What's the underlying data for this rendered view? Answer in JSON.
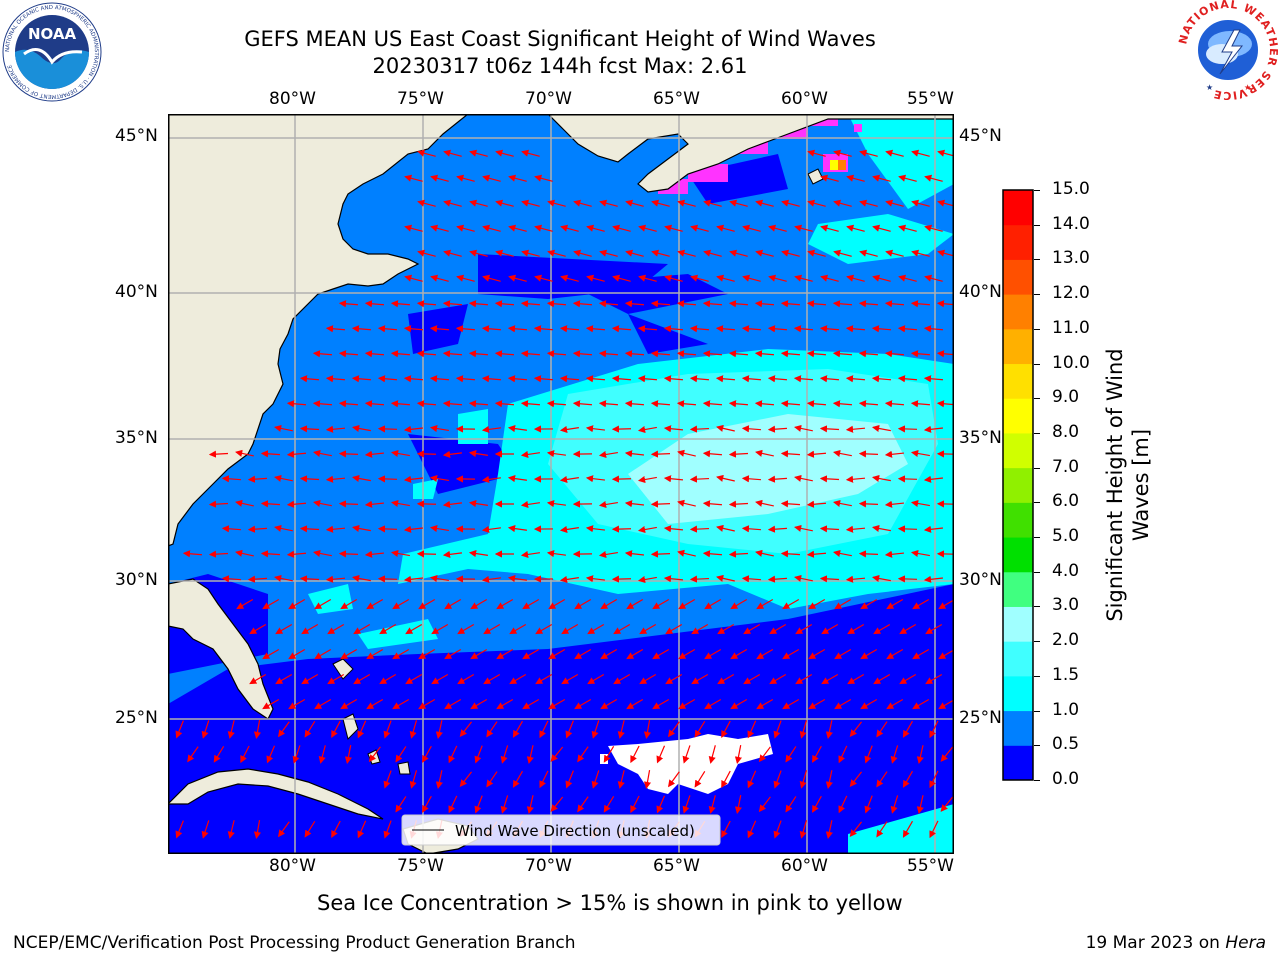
{
  "header": {
    "title_line1": "GEFS MEAN US East Coast Significant Height of Wind Waves",
    "title_line2": "20230317 t06z 144h fcst   Max: 2.61"
  },
  "logos": {
    "noaa_text": "NOAA",
    "noaa_ring_text": "NATIONAL OCEANIC AND ATMOSPHERIC ADMINISTRATION · U.S. DEPARTMENT OF COMMERCE",
    "nws_ring_text": "NATIONAL WEATHER SERVICE"
  },
  "map": {
    "lon_labels": [
      "80°W",
      "75°W",
      "70°W",
      "65°W",
      "60°W",
      "55°W"
    ],
    "lat_labels": [
      "45°N",
      "40°N",
      "35°N",
      "30°N",
      "25°N"
    ],
    "legend_label": "Wind Wave Direction (unscaled)",
    "colors": {
      "land": "#eeecdc",
      "ice": "#ff33ff",
      "arrow": "#ff0000",
      "grid": "#b0b0b0"
    }
  },
  "colorbar": {
    "label": "Significant Height of Wind Waves [m]",
    "ticks": [
      "0.0",
      "0.5",
      "1.0",
      "1.5",
      "2.0",
      "3.0",
      "4.0",
      "5.0",
      "6.0",
      "7.0",
      "8.0",
      "9.0",
      "10.0",
      "11.0",
      "12.0",
      "13.0",
      "14.0",
      "15.0"
    ],
    "colors": [
      "#0000ff",
      "#0080ff",
      "#00ffff",
      "#40ffff",
      "#a0ffff",
      "#40ff80",
      "#00e000",
      "#40e000",
      "#90f000",
      "#d0ff00",
      "#ffff00",
      "#ffe000",
      "#ffb000",
      "#ff8000",
      "#ff5000",
      "#ff2000",
      "#ff0000"
    ]
  },
  "footer": {
    "note": "Sea Ice Concentration > 15% is shown in pink to yellow",
    "branch": "NCEP/EMC/Verification Post Processing Product Generation Branch",
    "date": "19 Mar 2023 on ",
    "machine": "Hera"
  }
}
